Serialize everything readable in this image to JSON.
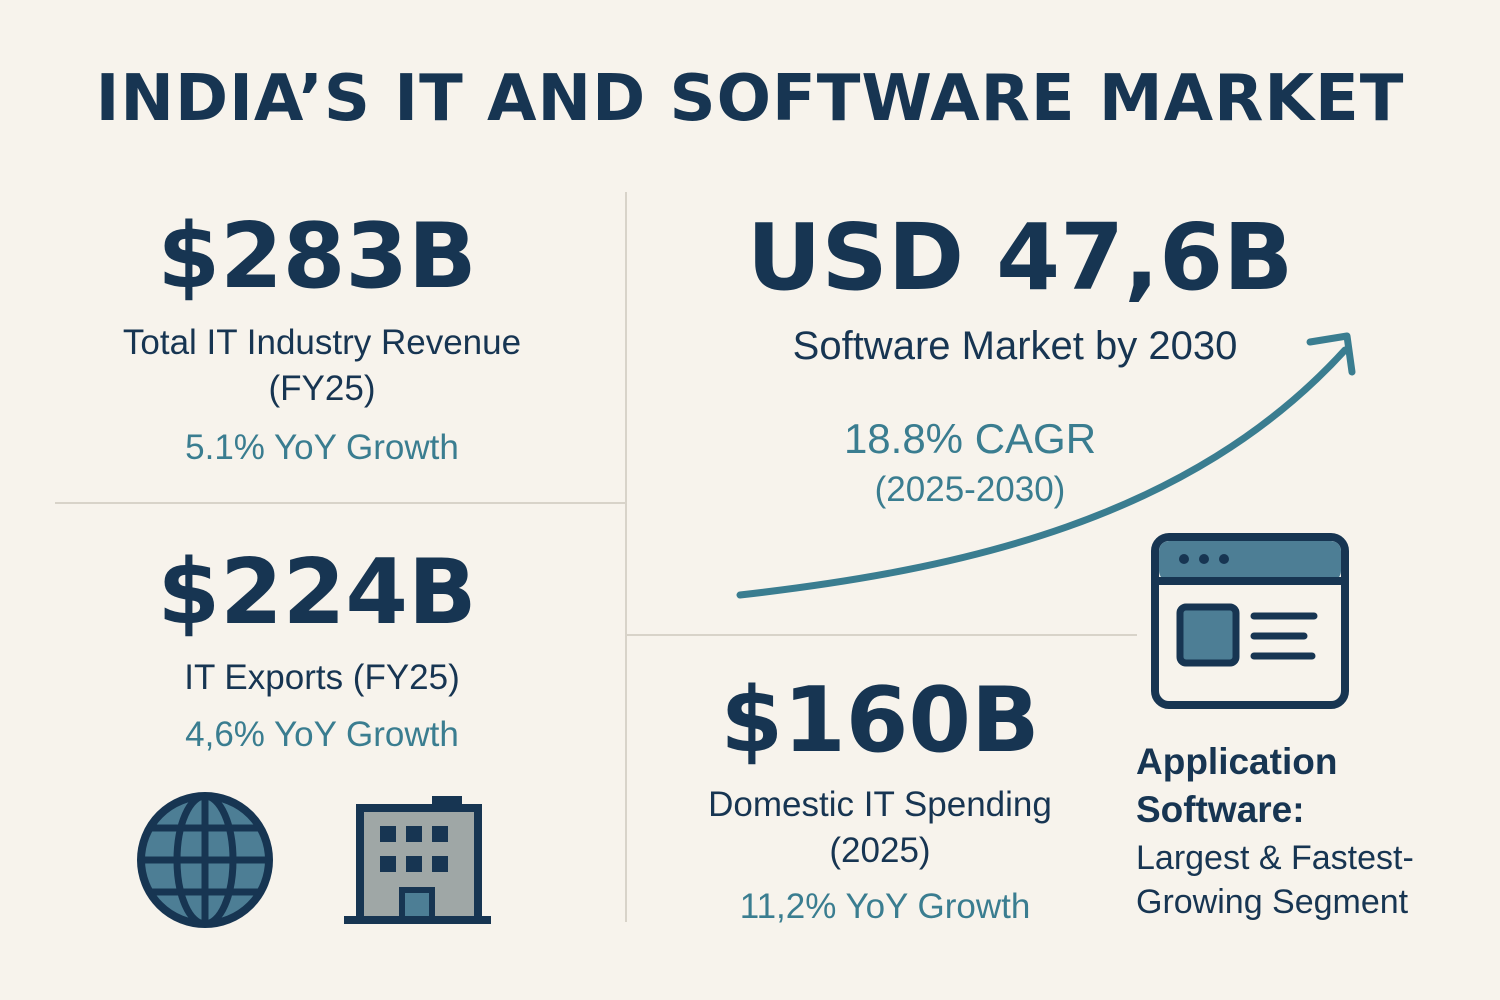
{
  "title": "INDIA’S IT AND SOFTWARE MARKET",
  "stats": {
    "total_revenue": {
      "value": "$283B",
      "label_line1": "Total IT Industry Revenue",
      "label_line2": "(FY25)",
      "growth": "5.1% YoY Growth"
    },
    "exports": {
      "value": "$224B",
      "label": "IT Exports (FY25)",
      "growth": "4,6% YoY Growth"
    },
    "software_market": {
      "value": "USD 47,6B",
      "label": "Software Market by 2030",
      "cagr": "18.8% CAGR",
      "cagr_period": "(2025-2030)"
    },
    "domestic": {
      "value": "$160B",
      "label_line1": "Domestic IT Spending",
      "label_line2": "(2025)",
      "growth": "11,2% YoY Growth"
    },
    "application": {
      "line1": "Application",
      "line2": "Software:",
      "line3": "Largest & Fastest-",
      "line4": "Growing Segment"
    }
  },
  "icons": {
    "globe": "globe-icon",
    "building": "building-icon",
    "browser": "browser-window-icon",
    "growth_arrow": "growth-arrow-icon"
  },
  "colors": {
    "background": "#f7f3ec",
    "navy": "#173552",
    "teal": "#3a7d90",
    "icon_fill": "#4d7e95",
    "divider": "#d8d3c9"
  }
}
